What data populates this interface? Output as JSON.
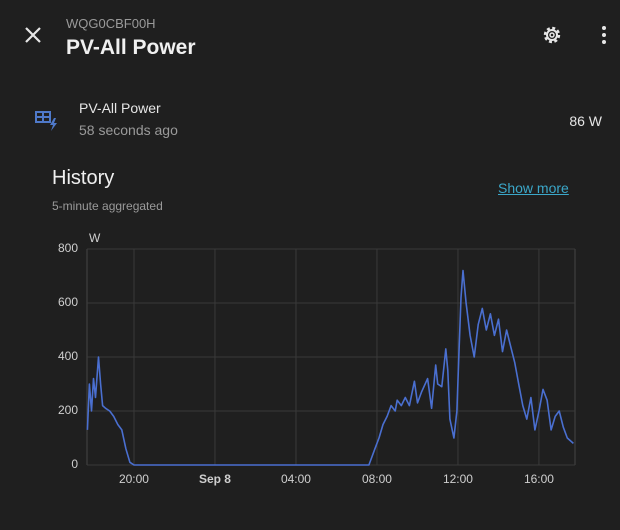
{
  "header": {
    "subtitle": "WQG0CBF00H",
    "title": "PV-All Power"
  },
  "entity": {
    "name": "PV-All Power",
    "last_changed": "58 seconds ago",
    "state": "86 W"
  },
  "history": {
    "title": "History",
    "note": "5-minute aggregated",
    "show_more": "Show more"
  },
  "chart_data": {
    "type": "line",
    "y_unit": "W",
    "color": "#4a6fd0",
    "grid": true,
    "xlim": [
      17.68,
      41.78
    ],
    "ylim": [
      0,
      800
    ],
    "xticks": [
      {
        "value": 20,
        "label": "20:00"
      },
      {
        "value": 24,
        "label": "Sep 8"
      },
      {
        "value": 28,
        "label": "04:00"
      },
      {
        "value": 32,
        "label": "08:00"
      },
      {
        "value": 36,
        "label": "12:00"
      },
      {
        "value": 40,
        "label": "16:00"
      }
    ],
    "yticks": [
      0,
      200,
      400,
      600,
      800
    ],
    "x": [
      17.7,
      17.8,
      17.9,
      18.0,
      18.1,
      18.25,
      18.35,
      18.45,
      18.6,
      18.8,
      19.0,
      19.2,
      19.4,
      19.6,
      19.8,
      20.0,
      31.6,
      31.7,
      31.9,
      32.1,
      32.3,
      32.5,
      32.7,
      32.9,
      33.0,
      33.2,
      33.4,
      33.6,
      33.85,
      34.0,
      34.2,
      34.5,
      34.7,
      34.9,
      35.0,
      35.2,
      35.4,
      35.5,
      35.6,
      35.8,
      35.95,
      36.05,
      36.15,
      36.25,
      36.4,
      36.6,
      36.8,
      37.0,
      37.2,
      37.4,
      37.6,
      37.8,
      38.0,
      38.2,
      38.4,
      38.6,
      38.8,
      39.0,
      39.2,
      39.4,
      39.6,
      39.8,
      40.0,
      40.2,
      40.4,
      40.6,
      40.8,
      41.0,
      41.2,
      41.4,
      41.7
    ],
    "values": [
      130,
      300,
      200,
      320,
      250,
      400,
      300,
      220,
      210,
      200,
      180,
      150,
      130,
      60,
      10,
      0,
      0,
      20,
      60,
      100,
      150,
      180,
      220,
      200,
      240,
      220,
      250,
      220,
      310,
      230,
      270,
      320,
      210,
      370,
      300,
      290,
      430,
      350,
      170,
      100,
      200,
      420,
      620,
      720,
      600,
      480,
      400,
      520,
      580,
      500,
      560,
      480,
      540,
      420,
      500,
      440,
      380,
      300,
      220,
      170,
      250,
      130,
      200,
      280,
      240,
      130,
      180,
      200,
      140,
      100,
      80
    ]
  }
}
